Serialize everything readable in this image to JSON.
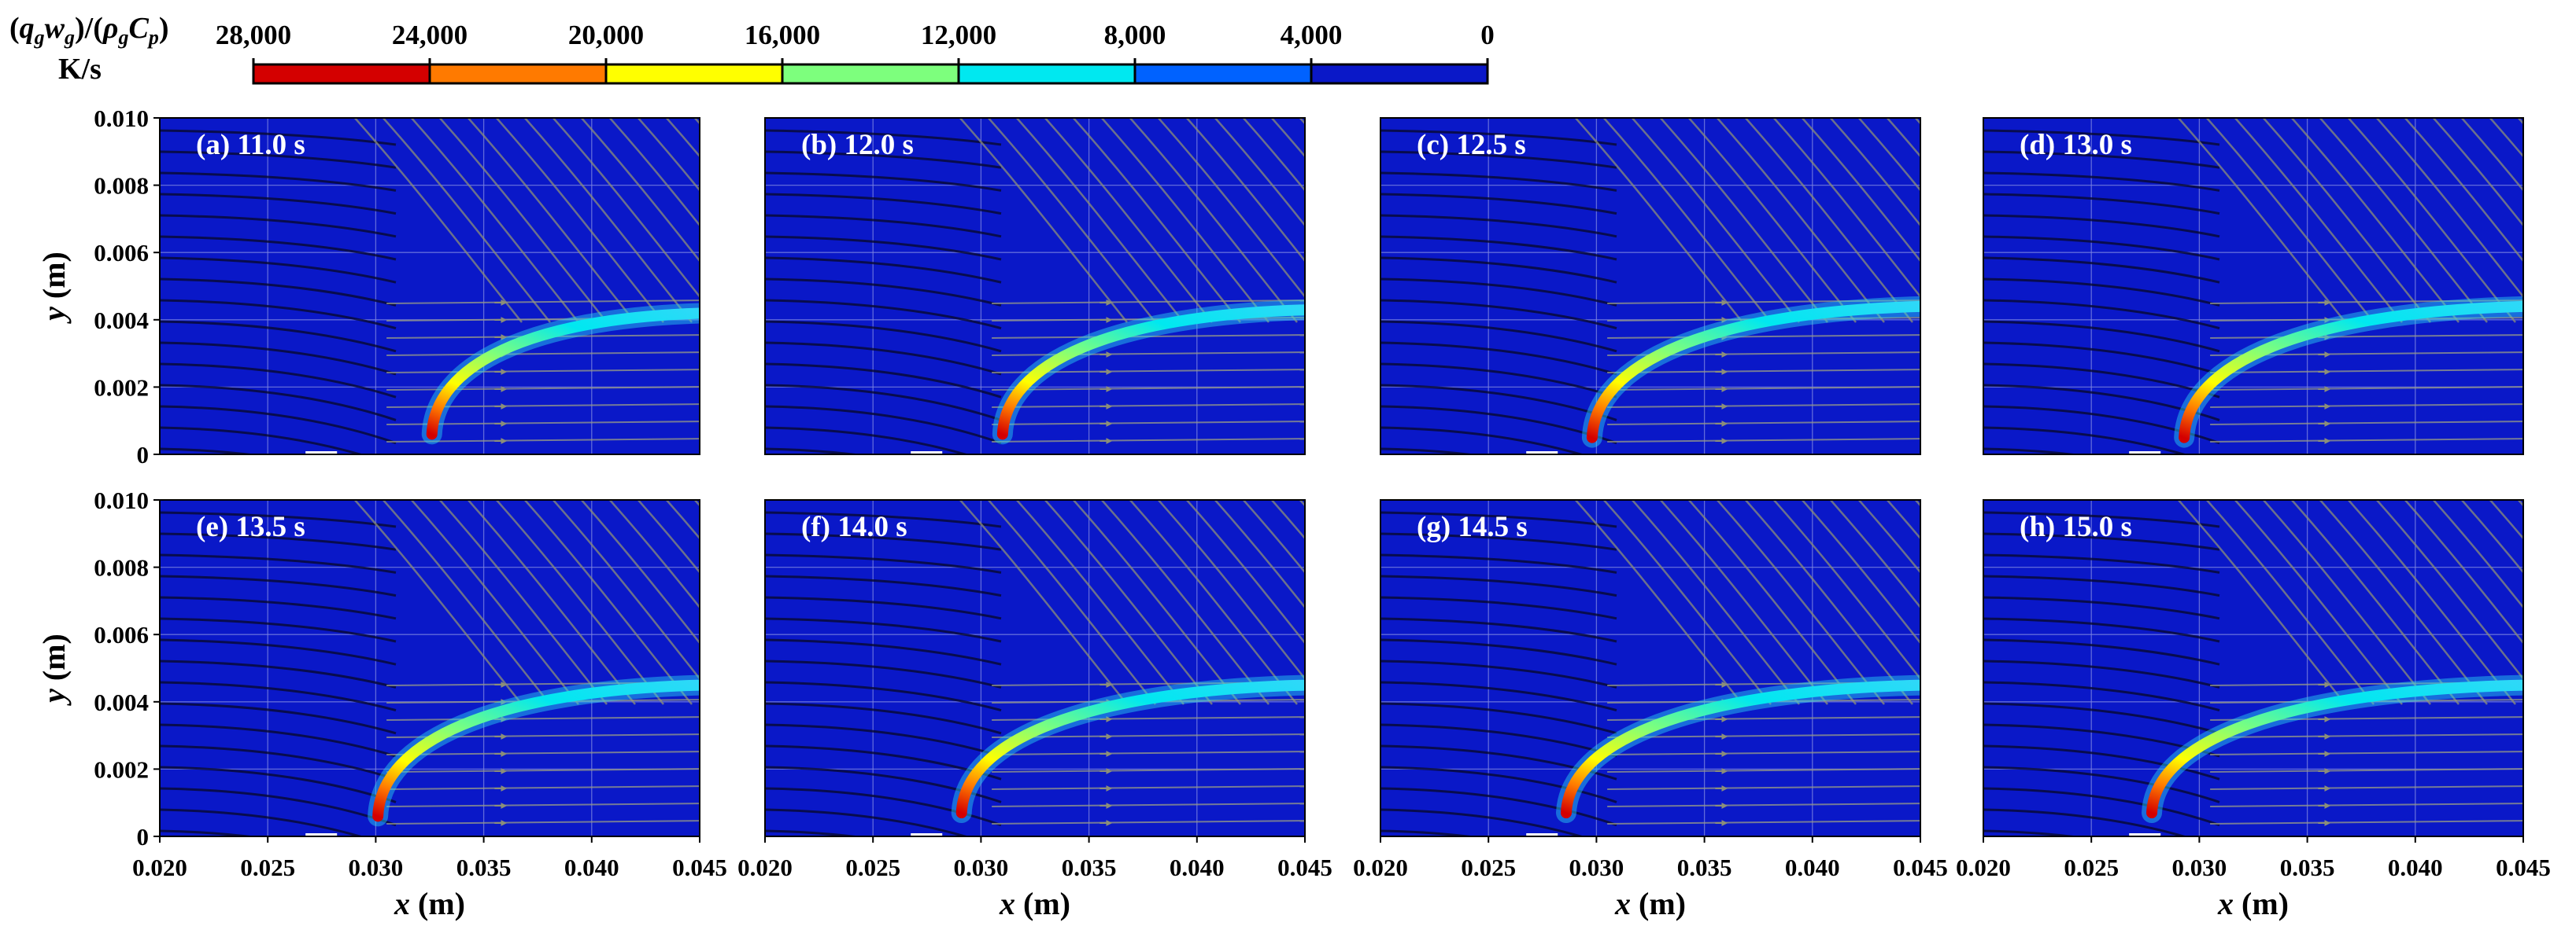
{
  "chart_data": {
    "type": "heatmap",
    "colorbar": {
      "title": "(q_g w_g)/(ρ_g C_p)",
      "unit": "K/s",
      "ticks": [
        "28,000",
        "24,000",
        "20,000",
        "16,000",
        "12,000",
        "8,000",
        "4,000",
        "0"
      ],
      "values": [
        28000,
        24000,
        20000,
        16000,
        12000,
        8000,
        4000,
        0
      ],
      "colors": [
        "#d40000",
        "#ff7a00",
        "#ffff00",
        "#7dff7d",
        "#00e8f0",
        "#0062ff",
        "#0a18c8"
      ]
    },
    "xlabel": "x (m)",
    "ylabel": "y (m)",
    "xlim": [
      0.02,
      0.045
    ],
    "ylim": [
      0,
      0.01
    ],
    "xticks": [
      "0.020",
      "0.025",
      "0.030",
      "0.035",
      "0.040",
      "0.045"
    ],
    "yticks": [
      "0.010",
      "0.008",
      "0.006",
      "0.004",
      "0.002",
      "0"
    ],
    "grid": true,
    "panels": [
      {
        "label": "(a) 11.0 s",
        "flame_base": [
          0.0326,
          0.0006
        ],
        "flame_tip_y": 0.0042
      },
      {
        "label": "(b) 12.0 s",
        "flame_base": [
          0.031,
          0.0006
        ],
        "flame_tip_y": 0.0043
      },
      {
        "label": "(c) 12.5 s",
        "flame_base": [
          0.0298,
          0.0005
        ],
        "flame_tip_y": 0.0044
      },
      {
        "label": "(d) 13.0 s",
        "flame_base": [
          0.0293,
          0.0005
        ],
        "flame_tip_y": 0.0044
      },
      {
        "label": "(e) 13.5 s",
        "flame_base": [
          0.0301,
          0.0006
        ],
        "flame_tip_y": 0.0045
      },
      {
        "label": "(f) 14.0 s",
        "flame_base": [
          0.0291,
          0.0007
        ],
        "flame_tip_y": 0.0045
      },
      {
        "label": "(g) 14.5 s",
        "flame_base": [
          0.0286,
          0.0007
        ],
        "flame_tip_y": 0.0045
      },
      {
        "label": "(h) 15.0 s",
        "flame_base": [
          0.0278,
          0.0007
        ],
        "flame_tip_y": 0.0045
      }
    ]
  }
}
